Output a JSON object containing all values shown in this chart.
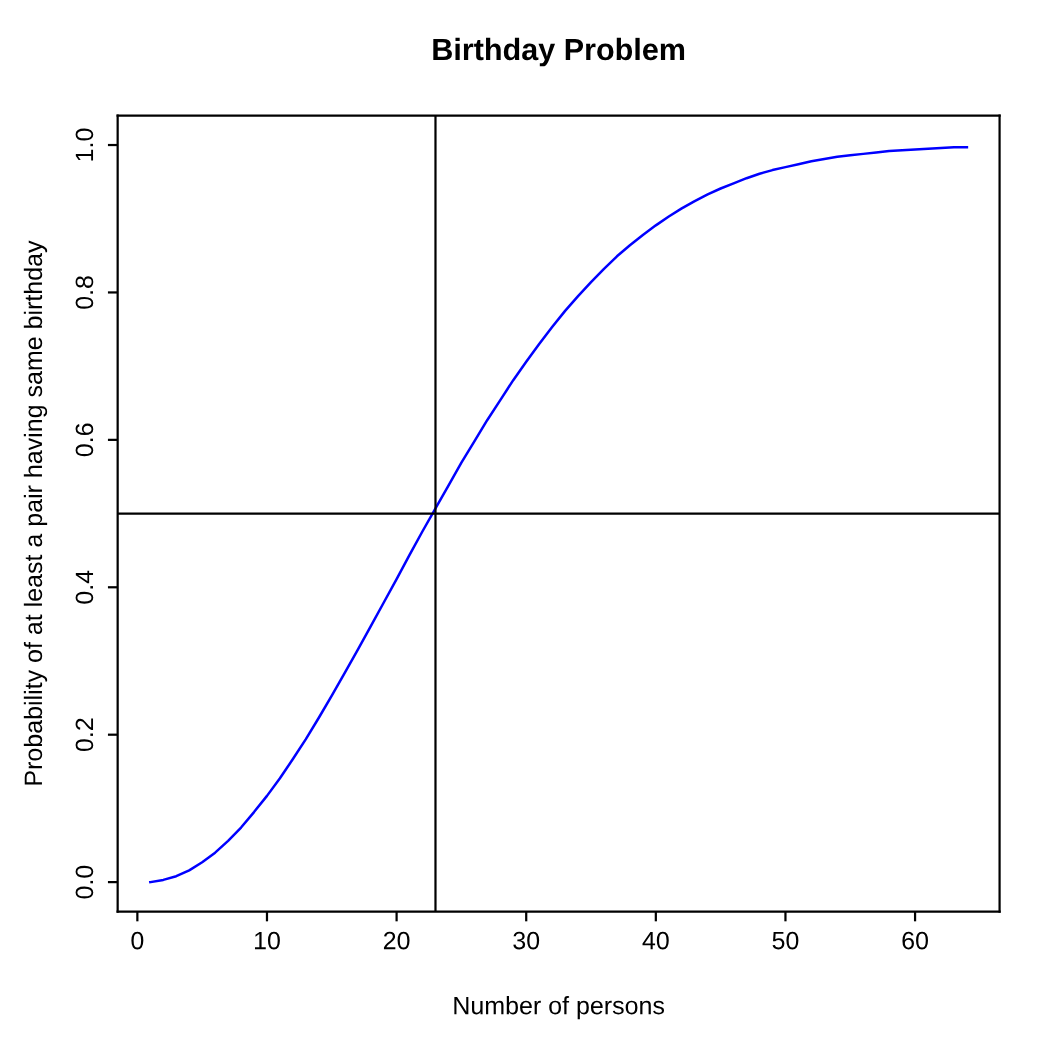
{
  "chart_data": {
    "type": "line",
    "title": "Birthday Problem",
    "xlabel": "Number of persons",
    "ylabel": "Probability of at least a pair having same birthday",
    "x": [
      1,
      2,
      3,
      4,
      5,
      6,
      7,
      8,
      9,
      10,
      11,
      12,
      13,
      14,
      15,
      16,
      17,
      18,
      19,
      20,
      21,
      22,
      23,
      24,
      25,
      26,
      27,
      28,
      29,
      30,
      31,
      32,
      33,
      34,
      35,
      36,
      37,
      38,
      39,
      40,
      41,
      42,
      43,
      44,
      45,
      46,
      47,
      48,
      49,
      50,
      51,
      52,
      53,
      54,
      55,
      56,
      57,
      58,
      59,
      60,
      61,
      62,
      63,
      64
    ],
    "series": [
      {
        "color": "#0000ff",
        "values": [
          0.0,
          0.003,
          0.008,
          0.016,
          0.027,
          0.04,
          0.056,
          0.074,
          0.095,
          0.117,
          0.141,
          0.167,
          0.194,
          0.223,
          0.253,
          0.284,
          0.315,
          0.347,
          0.379,
          0.411,
          0.444,
          0.476,
          0.507,
          0.538,
          0.569,
          0.598,
          0.627,
          0.654,
          0.681,
          0.706,
          0.73,
          0.753,
          0.775,
          0.795,
          0.814,
          0.832,
          0.849,
          0.864,
          0.878,
          0.891,
          0.903,
          0.914,
          0.924,
          0.933,
          0.941,
          0.948,
          0.955,
          0.961,
          0.966,
          0.97,
          0.974,
          0.978,
          0.981,
          0.984,
          0.986,
          0.988,
          0.99,
          0.992,
          0.993,
          0.994,
          0.995,
          0.996,
          0.997,
          0.997
        ]
      }
    ],
    "xlim": [
      -1.52,
      66.52
    ],
    "ylim": [
      -0.04,
      1.04
    ],
    "xticks": [
      0,
      10,
      20,
      30,
      40,
      50,
      60
    ],
    "yticks": [
      {
        "value": 0,
        "label": "0.0"
      },
      {
        "value": 0.2,
        "label": "0.2"
      },
      {
        "value": 0.4,
        "label": "0.4"
      },
      {
        "value": 0.6,
        "label": "0.6"
      },
      {
        "value": 0.8,
        "label": "0.8"
      },
      {
        "value": 1,
        "label": "1.0"
      }
    ],
    "ref_lines": [
      {
        "axis": "x",
        "value": 23,
        "color": "#000000"
      },
      {
        "axis": "y",
        "value": 0.5,
        "color": "#000000"
      }
    ],
    "grid": false,
    "legend": false,
    "marker": "none",
    "line_style": "solid"
  }
}
